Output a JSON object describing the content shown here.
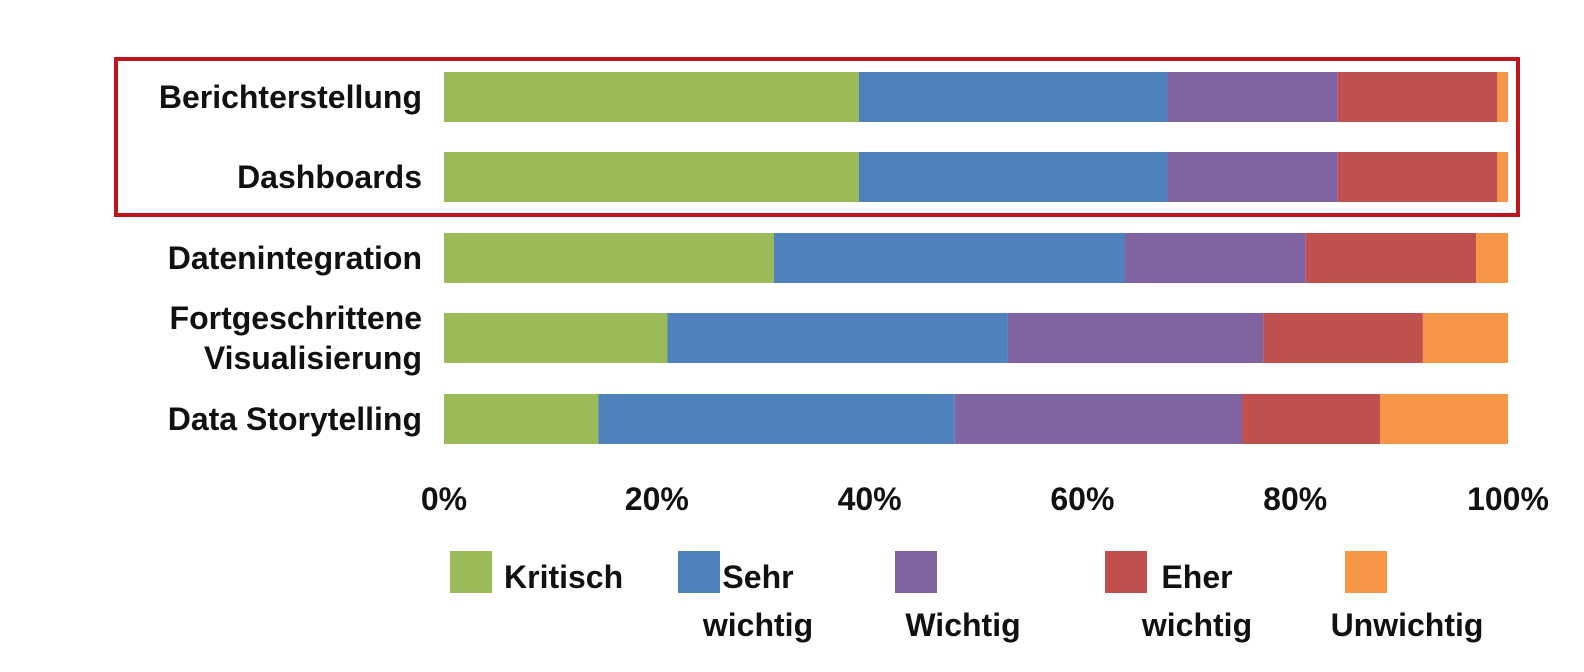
{
  "chart_data": {
    "type": "bar",
    "orientation": "horizontal",
    "stacked": true,
    "categories": [
      "Berichterstellung",
      "Dashboards",
      "Datenintegration",
      "Fortgeschrittene Visualisierung",
      "Data Storytelling"
    ],
    "category_lines": [
      [
        "Berichterstellung"
      ],
      [
        "Dashboards"
      ],
      [
        "Datenintegration"
      ],
      [
        "Fortgeschrittene",
        "Visualisierung"
      ],
      [
        "Data Storytelling"
      ]
    ],
    "series": [
      {
        "name": "Kritisch",
        "legend_lines": [
          "Kritisch"
        ],
        "color": "#9BBB59",
        "values": [
          39,
          39,
          31,
          21,
          14.5
        ]
      },
      {
        "name": "Sehr wichtig",
        "legend_lines": [
          "Sehr",
          "wichtig"
        ],
        "color": "#4F81BD",
        "values": [
          29,
          29,
          33,
          32,
          33.5
        ]
      },
      {
        "name": "Wichtig",
        "legend_lines": [
          "Wichtig"
        ],
        "color": "#8064A2",
        "values": [
          16,
          16,
          17,
          24,
          27
        ]
      },
      {
        "name": "Eher wichtig",
        "legend_lines": [
          "Eher",
          "wichtig"
        ],
        "color": "#C0504D",
        "values": [
          15,
          15,
          16,
          15,
          13
        ]
      },
      {
        "name": "Unwichtig",
        "legend_lines": [
          "Unwichtig"
        ],
        "color": "#F79646",
        "values": [
          1,
          1,
          3,
          8,
          12
        ]
      }
    ],
    "xlim": [
      0,
      100
    ],
    "x_ticks": [
      "0%",
      "20%",
      "40%",
      "60%",
      "80%",
      "100%"
    ],
    "grid": false,
    "legend_position": "bottom",
    "highlight": {
      "categories": [
        "Berichterstellung",
        "Dashboards"
      ],
      "color": "#C0141C"
    }
  }
}
